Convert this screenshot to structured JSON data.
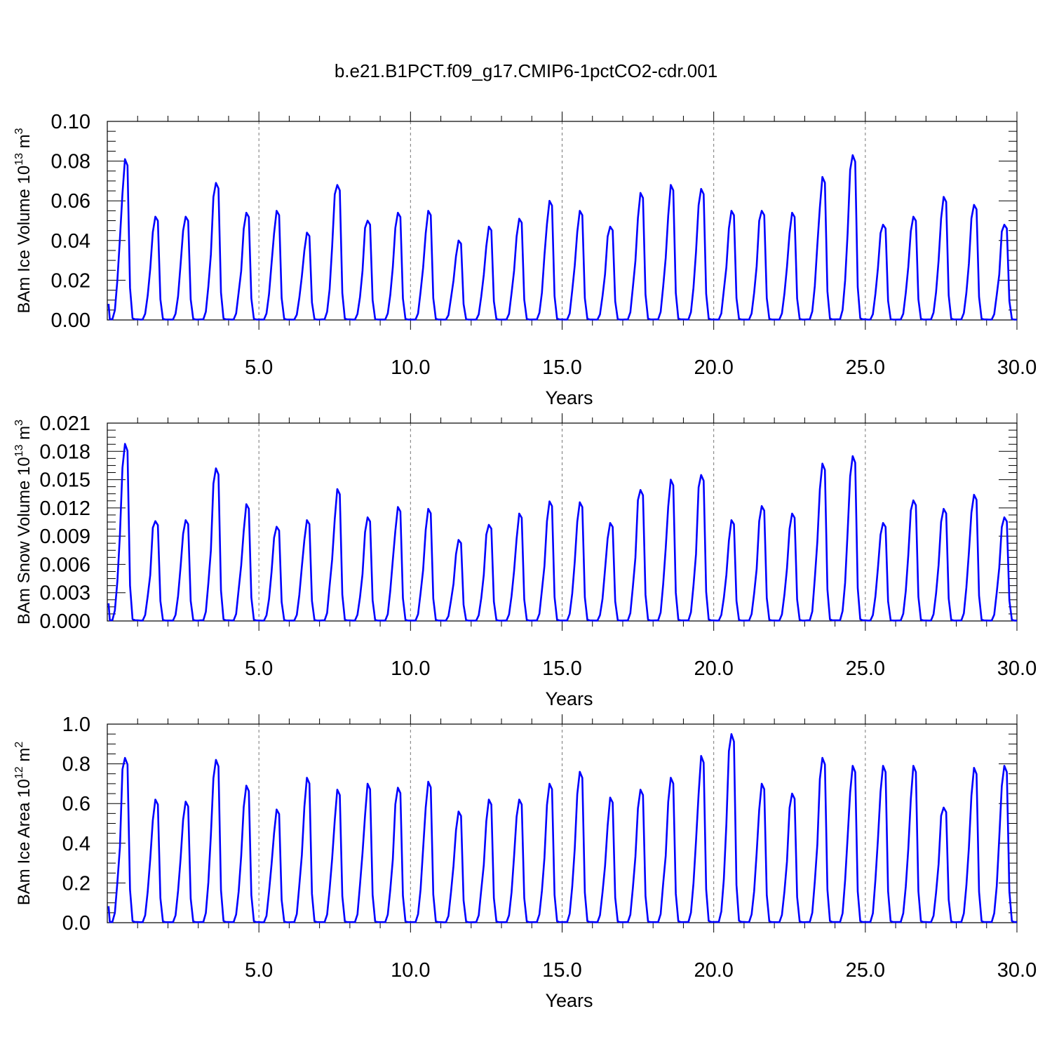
{
  "figure": {
    "title": "b.e21.B1PCT.f09_g17.CMIP6-1pctCO2-cdr.001"
  },
  "chart_data": [
    {
      "type": "line",
      "ylabel": "BAm Ice Volume 10",
      "ylabel_exp": "13",
      "ylabel_unit": " m",
      "ylabel_unit_exp": "3",
      "xlabel": "Years",
      "xlim": [
        0,
        30
      ],
      "ylim": [
        0,
        0.1
      ],
      "yticks": [
        "0.00",
        "0.02",
        "0.04",
        "0.06",
        "0.08",
        "0.10"
      ],
      "xticks": [
        "5.0",
        "10.0",
        "15.0",
        "20.0",
        "25.0",
        "30.0"
      ],
      "grid": "vertical dashed at major x ticks",
      "color": "#0000ff",
      "peaks": [
        0.081,
        0.052,
        0.052,
        0.069,
        0.054,
        0.055,
        0.044,
        0.068,
        0.05,
        0.054,
        0.055,
        0.04,
        0.047,
        0.051,
        0.06,
        0.055,
        0.047,
        0.064,
        0.068,
        0.066,
        0.055,
        0.055,
        0.054,
        0.072,
        0.083,
        0.048,
        0.052,
        0.062,
        0.058,
        0.048
      ]
    },
    {
      "type": "line",
      "ylabel": "BAm Snow Volume 10",
      "ylabel_exp": "13",
      "ylabel_unit": " m",
      "ylabel_unit_exp": "3",
      "xlabel": "Years",
      "xlim": [
        0,
        30
      ],
      "ylim": [
        0,
        0.021
      ],
      "yticks": [
        "0.000",
        "0.003",
        "0.006",
        "0.009",
        "0.012",
        "0.015",
        "0.018",
        "0.021"
      ],
      "xticks": [
        "5.0",
        "10.0",
        "15.0",
        "20.0",
        "25.0",
        "30.0"
      ],
      "grid": "vertical dashed at major x ticks",
      "color": "#0000ff",
      "peaks": [
        0.0188,
        0.0106,
        0.0107,
        0.0162,
        0.0124,
        0.01,
        0.0107,
        0.014,
        0.011,
        0.0121,
        0.0119,
        0.0086,
        0.0102,
        0.0114,
        0.0127,
        0.0126,
        0.0104,
        0.0139,
        0.015,
        0.0155,
        0.0107,
        0.0122,
        0.0114,
        0.0167,
        0.0175,
        0.0104,
        0.0128,
        0.0119,
        0.0134,
        0.011
      ]
    },
    {
      "type": "line",
      "ylabel": "BAm Ice Area 10",
      "ylabel_exp": "12",
      "ylabel_unit": " m",
      "ylabel_unit_exp": "2",
      "xlabel": "Years",
      "xlim": [
        0,
        30
      ],
      "ylim": [
        0,
        1.0
      ],
      "yticks": [
        "0.0",
        "0.2",
        "0.4",
        "0.6",
        "0.8",
        "1.0"
      ],
      "xticks": [
        "5.0",
        "10.0",
        "15.0",
        "20.0",
        "25.0",
        "30.0"
      ],
      "grid": "vertical dashed at major x ticks",
      "color": "#0000ff",
      "peaks": [
        0.83,
        0.62,
        0.61,
        0.82,
        0.69,
        0.57,
        0.73,
        0.67,
        0.7,
        0.68,
        0.71,
        0.56,
        0.62,
        0.62,
        0.7,
        0.76,
        0.63,
        0.67,
        0.73,
        0.84,
        0.95,
        0.7,
        0.65,
        0.83,
        0.79,
        0.79,
        0.79,
        0.58,
        0.78,
        0.79
      ]
    }
  ]
}
